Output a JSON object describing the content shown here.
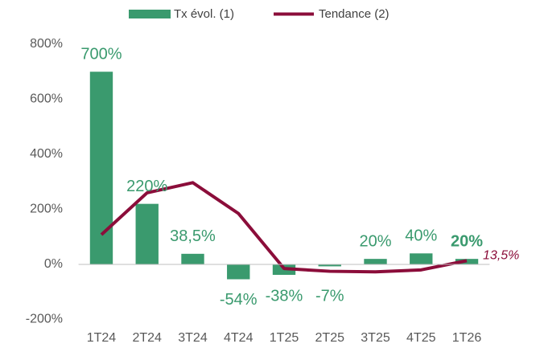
{
  "chart_data": {
    "type": "bar_line",
    "categories": [
      "1T24",
      "2T24",
      "3T24",
      "4T24",
      "1T25",
      "2T25",
      "3T25",
      "4T25",
      "1T26"
    ],
    "series": [
      {
        "name": "Tx évol. (1)",
        "type": "bar",
        "color": "#3a9a6e",
        "values": [
          700,
          220,
          38.5,
          -54,
          -38,
          -7,
          20,
          40,
          20
        ],
        "value_labels": [
          "700%",
          "220%",
          "38,5%",
          "-54%",
          "-38%",
          "-7%",
          "20%",
          "40%",
          "20%"
        ],
        "value_label_bold": [
          false,
          false,
          false,
          false,
          false,
          false,
          false,
          false,
          true
        ]
      },
      {
        "name": "Tendance (2)",
        "type": "line",
        "color": "#8b0d3a",
        "values": [
          108,
          260,
          297,
          185,
          -15,
          -25,
          -27,
          -20,
          13.5
        ],
        "value_labels": [
          null,
          null,
          null,
          null,
          null,
          null,
          null,
          null,
          "13,5%"
        ]
      }
    ],
    "ylim": [
      -200,
      800
    ],
    "yticks": [
      {
        "value": -200,
        "label": "-200%"
      },
      {
        "value": 0,
        "label": "0%"
      },
      {
        "value": 200,
        "label": "200%"
      },
      {
        "value": 400,
        "label": "400%"
      },
      {
        "value": 600,
        "label": "600%"
      },
      {
        "value": 800,
        "label": "800%"
      }
    ],
    "grid": false,
    "legend": "top"
  }
}
